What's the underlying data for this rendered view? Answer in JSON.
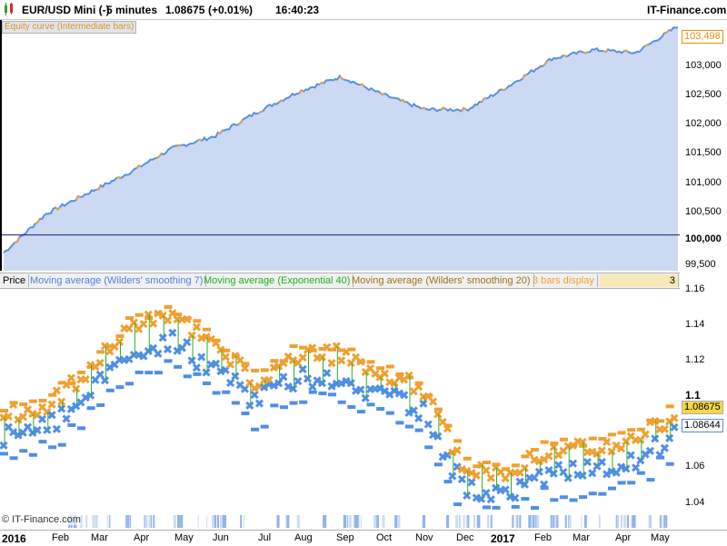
{
  "header": {
    "instrument": "EUR/USD Mini (-)",
    "timeframe": "5 minutes",
    "price": "1.08675",
    "change": "(+0.01%)",
    "time": "16:40:23",
    "brand": "IT-Finance.com"
  },
  "equity": {
    "label": "Equity curve (Intermediate bars)",
    "y_ticks": [
      "103,000",
      "102,500",
      "102,000",
      "101,500",
      "101,000",
      "100,500",
      "100,000",
      "99,500"
    ],
    "current_value": "103,498",
    "baseline": "100,000"
  },
  "legend": {
    "price": "Price",
    "ma1": "Moving average (Wilders' smoothing 7)",
    "ma2": "Moving average (Exponential 40)",
    "ma3": "Moving average (Wilders' smoothing 20)",
    "ma4": "3 bars display",
    "ma4_extra": "3"
  },
  "price_panel": {
    "y_ticks": [
      "1.16",
      "1.14",
      "1.12",
      "1.1",
      "1.06",
      "1.04"
    ],
    "badge1": "1.08675",
    "badge2": "1.08644"
  },
  "x_axis": {
    "labels": [
      "2016",
      "Feb",
      "Mar",
      "Apr",
      "May",
      "Jun",
      "Jul",
      "Aug",
      "Sep",
      "Oct",
      "Nov",
      "Dec",
      "2017",
      "Feb",
      "Mar",
      "Apr",
      "May"
    ]
  },
  "footer": {
    "watermark": "© IT-Finance.com"
  },
  "colors": {
    "equity_fill": "#ccd9f2",
    "equity_line": "#5b8ee0",
    "orange": "#f0a030",
    "blue": "#4f8ee8",
    "green": "#22b022",
    "badge_yellow": "#f4d84a"
  },
  "chart_data": [
    {
      "type": "area",
      "title": "Equity curve (Intermediate bars)",
      "x": [
        "2016-01",
        "2016-02",
        "2016-03",
        "2016-04",
        "2016-05",
        "2016-06",
        "2016-07",
        "2016-08",
        "2016-09",
        "2016-10",
        "2016-11",
        "2016-12",
        "2017-01",
        "2017-02",
        "2017-03",
        "2017-04",
        "2017-05"
      ],
      "values": [
        99700,
        100350,
        100700,
        101050,
        101450,
        101650,
        102050,
        102400,
        102650,
        102350,
        102100,
        102100,
        102500,
        102950,
        103100,
        103050,
        103498
      ],
      "ylim": [
        99400,
        103600
      ]
    },
    {
      "type": "scatter",
      "title": "EUR/USD Mini (-)",
      "x": [
        "2016-01",
        "2016-02",
        "2016-03",
        "2016-04",
        "2016-05",
        "2016-06",
        "2016-07",
        "2016-08",
        "2016-09",
        "2016-10",
        "2016-11",
        "2016-12",
        "2017-01",
        "2017-02",
        "2017-03",
        "2017-04",
        "2017-05"
      ],
      "series": [
        {
          "name": "Moving average (Wilders' smoothing 7)",
          "values": [
            1.085,
            1.09,
            1.11,
            1.13,
            1.14,
            1.125,
            1.105,
            1.12,
            1.12,
            1.11,
            1.1,
            1.055,
            1.05,
            1.065,
            1.065,
            1.07,
            1.086
          ]
        },
        {
          "name": "Moving average (Wilders' smoothing 20)",
          "values": [
            1.09,
            1.095,
            1.115,
            1.14,
            1.15,
            1.13,
            1.11,
            1.125,
            1.125,
            1.115,
            1.105,
            1.06,
            1.055,
            1.07,
            1.07,
            1.075,
            1.09
          ]
        }
      ],
      "ylim": [
        1.035,
        1.165
      ]
    }
  ]
}
